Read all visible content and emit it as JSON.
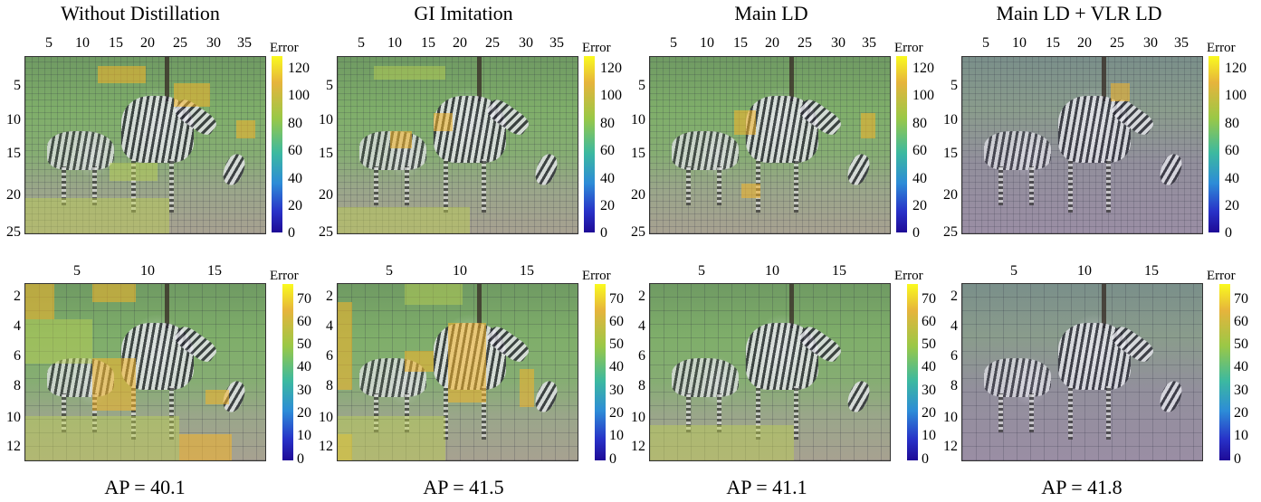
{
  "columns": [
    {
      "title": "Without Distillation",
      "ap": "AP = 40.1"
    },
    {
      "title": "GI Imitation",
      "ap": "AP = 41.5"
    },
    {
      "title": "Main LD",
      "ap": "AP = 41.1"
    },
    {
      "title": "Main LD + VLR LD",
      "ap": "AP = 41.8"
    }
  ],
  "top_row": {
    "x_ticks": [
      "5",
      "10",
      "15",
      "20",
      "25",
      "30",
      "35"
    ],
    "y_ticks": [
      "5",
      "10",
      "15",
      "20",
      "25"
    ],
    "colorbar_title": "Error",
    "colorbar_ticks": [
      "120",
      "100",
      "80",
      "60",
      "40",
      "20",
      "0"
    ],
    "colorbar_range": [
      0,
      128
    ]
  },
  "bottom_row": {
    "x_ticks": [
      "5",
      "10",
      "15"
    ],
    "y_ticks": [
      "2",
      "4",
      "6",
      "8",
      "10",
      "12"
    ],
    "colorbar_title": "Error",
    "colorbar_ticks": [
      "70",
      "60",
      "50",
      "40",
      "30",
      "20",
      "10",
      "0"
    ],
    "colorbar_range": [
      0,
      78
    ]
  },
  "colors": {
    "colormap_high": "#fafa1e",
    "colormap_mid": "#3cb9a0",
    "colormap_low": "#1e0a96",
    "hot_region": "#f5b428"
  }
}
